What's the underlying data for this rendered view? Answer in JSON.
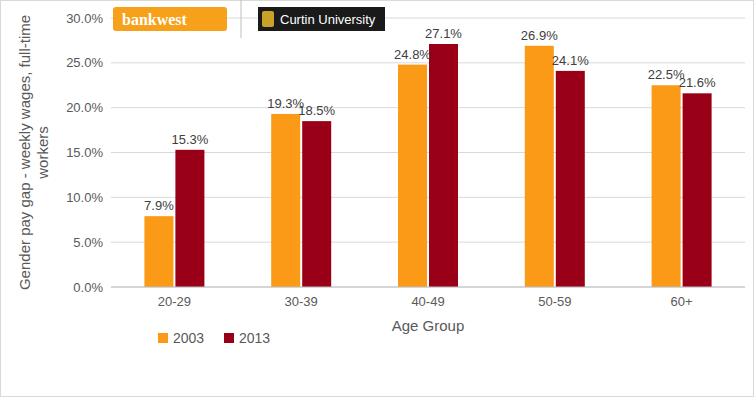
{
  "chart_data": {
    "type": "bar",
    "annotations": [
      "bankwest",
      "Curtin University"
    ],
    "x_label": "Age Group",
    "y_label": "Gender pay gap - weekly wages, full-time workers",
    "categories": [
      "20-29",
      "30-39",
      "40-49",
      "50-59",
      "60+"
    ],
    "series": [
      {
        "name": "2003",
        "color": "#fb9a16",
        "values": [
          7.9,
          19.3,
          24.8,
          26.9,
          22.5
        ],
        "value_labels": [
          "7.9%",
          "19.3%",
          "24.8%",
          "26.9%",
          "22.5%"
        ]
      },
      {
        "name": "2013",
        "color": "#990017",
        "values": [
          15.3,
          18.5,
          27.1,
          24.1,
          21.6
        ],
        "value_labels": [
          "15.3%",
          "18.5%",
          "27.1%",
          "24.1%",
          "21.6%"
        ]
      }
    ],
    "ylim": [
      0,
      30
    ],
    "yticks": [
      {
        "value": 0,
        "label": "0.0%"
      },
      {
        "value": 5,
        "label": "5.0%"
      },
      {
        "value": 10,
        "label": "10.0%"
      },
      {
        "value": 15,
        "label": "15.0%"
      },
      {
        "value": 20,
        "label": "20.0%"
      },
      {
        "value": 25,
        "label": "25.0%"
      },
      {
        "value": 30,
        "label": "30.0%"
      }
    ],
    "grid": true,
    "data_labels": true,
    "legend": "bottom-left"
  }
}
